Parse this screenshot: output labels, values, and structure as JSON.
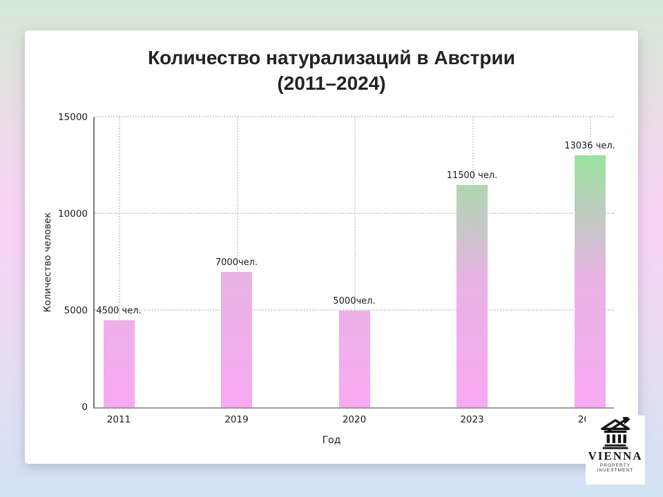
{
  "title": {
    "line1": "Количество натурализаций в Австрии",
    "line2": "(2011–2024)"
  },
  "chart_data": {
    "type": "bar",
    "title": "Количество натурализаций в Австрии (2011–2024)",
    "categories": [
      "2011",
      "2019",
      "2020",
      "2023",
      "2024"
    ],
    "values": [
      4500,
      7000,
      5000,
      11500,
      13036
    ],
    "bar_labels": [
      "4500 чел.",
      "7000чел.",
      "5000чел.",
      "11500 чел.",
      "13036 чел."
    ],
    "xlabel": "Год",
    "ylabel": "Количество человек",
    "ylim": [
      0,
      15000
    ],
    "yticks": [
      0,
      5000,
      10000,
      15000
    ],
    "grid": "dotted horizontal and vertical gridlines",
    "legend": "none",
    "bar_gradient": {
      "bottom": "#f8a9f2",
      "mid": "#e8b3e4",
      "top": "#82f28a"
    }
  },
  "colors": {
    "background_top": "#d4e9d6",
    "background_mid": "#fad2f7",
    "background_bottom": "#d3e2f5",
    "card": "#ffffff",
    "text": "#232229"
  },
  "logo": {
    "name": "VIENNA",
    "subtitle": "PROPERTY INVESTMENT"
  }
}
